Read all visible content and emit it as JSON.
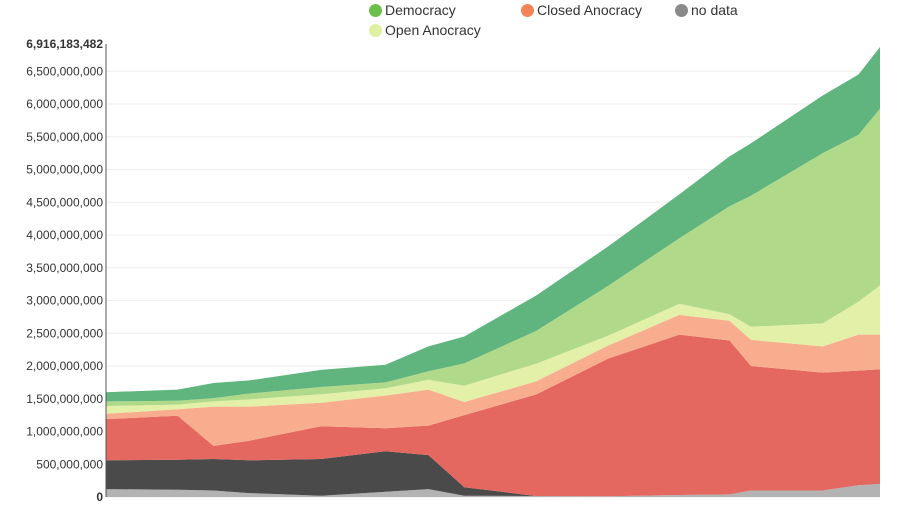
{
  "chart_data": {
    "type": "area",
    "stacked": true,
    "title": "",
    "xlabel": "",
    "ylabel": "",
    "xlim": [
      1900,
      2008
    ],
    "ylim": [
      0,
      6916183482
    ],
    "y_ticks": [
      0,
      500000000,
      1000000000,
      1500000000,
      2000000000,
      2500000000,
      3000000000,
      3500000000,
      4000000000,
      4500000000,
      5000000000,
      5500000000,
      6000000000,
      6500000000
    ],
    "y_tick_labels": [
      "0",
      "500,000,000",
      "1,000,000,000",
      "1,500,000,000",
      "2,000,000,000",
      "2,500,000,000",
      "3,000,000,000",
      "3,500,000,000",
      "4,000,000,000",
      "4,500,000,000",
      "5,000,000,000",
      "5,500,000,000",
      "6,000,000,000",
      "6,500,000,000"
    ],
    "y_max_label": "6,916,183,482",
    "grid": true,
    "legend_position": "top",
    "legend": [
      {
        "label": "Democracy",
        "color": "#6cbf4a"
      },
      {
        "label": "Closed Anocracy",
        "color": "#f3845a"
      },
      {
        "label": "no data",
        "color": "#8a8a8a"
      },
      {
        "label": "Open Anocracy",
        "color": "#dff0a2"
      }
    ],
    "x": [
      1900,
      1910,
      1915,
      1920,
      1930,
      1939,
      1945,
      1950,
      1960,
      1970,
      1980,
      1987,
      1990,
      2000,
      2005,
      2008
    ],
    "series": [
      {
        "key": "no_data",
        "color": "#b3b3b3",
        "values": [
          120000000,
          110000000,
          100000000,
          60000000,
          20000000,
          80000000,
          120000000,
          20000000,
          15000000,
          10000000,
          30000000,
          40000000,
          100000000,
          100000000,
          180000000,
          200000000
        ]
      },
      {
        "key": "autocracy",
        "color": "#4a4a4a",
        "values": [
          440000000,
          460000000,
          480000000,
          500000000,
          560000000,
          620000000,
          520000000,
          130000000,
          0,
          0,
          0,
          0,
          0,
          0,
          0,
          0
        ]
      },
      {
        "key": "closed_anocracy",
        "color": "#e4685f",
        "values": [
          630000000,
          670000000,
          200000000,
          300000000,
          500000000,
          350000000,
          450000000,
          1100000000,
          1550000000,
          2100000000,
          2450000000,
          2350000000,
          1900000000,
          1800000000,
          1750000000,
          1750000000
        ]
      },
      {
        "key": "open_anocracy",
        "color": "#f8ae8e",
        "values": [
          80000000,
          100000000,
          600000000,
          520000000,
          360000000,
          500000000,
          550000000,
          200000000,
          200000000,
          200000000,
          300000000,
          300000000,
          400000000,
          400000000,
          550000000,
          530000000
        ]
      },
      {
        "key": "open_anocracy_2",
        "color": "#e3f0a8",
        "values": [
          120000000,
          70000000,
          80000000,
          110000000,
          130000000,
          110000000,
          150000000,
          250000000,
          270000000,
          150000000,
          170000000,
          100000000,
          200000000,
          350000000,
          500000000,
          750000000
        ]
      },
      {
        "key": "democracy_light",
        "color": "#b1d98a",
        "values": [
          70000000,
          60000000,
          50000000,
          90000000,
          110000000,
          90000000,
          130000000,
          340000000,
          500000000,
          760000000,
          1000000000,
          1650000000,
          2000000000,
          2600000000,
          2550000000,
          2700000000
        ]
      },
      {
        "key": "democracy",
        "color": "#5fb57d",
        "values": [
          140000000,
          170000000,
          230000000,
          200000000,
          260000000,
          270000000,
          380000000,
          410000000,
          540000000,
          600000000,
          670000000,
          760000000,
          800000000,
          880000000,
          920000000,
          940000000
        ]
      }
    ]
  }
}
